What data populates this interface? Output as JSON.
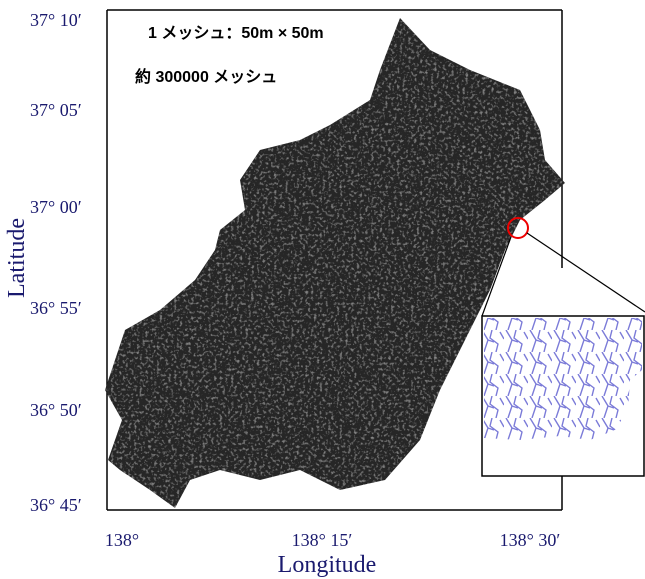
{
  "map": {
    "annotations": [
      "1 メッシュ：50m × 50m",
      "約 300000 メッシュ"
    ],
    "yticks": [
      "37° 10′",
      "37° 05′",
      "37° 00′",
      "36° 55′",
      "36° 50′",
      "36° 45′"
    ],
    "xticks": [
      "138°",
      "138° 15′",
      "138° 30′"
    ],
    "xlabel": "Longitude",
    "ylabel": "Latitude"
  }
}
